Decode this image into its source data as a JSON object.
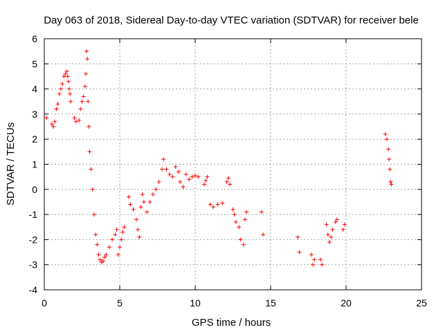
{
  "chart_data": {
    "type": "scatter",
    "title": "Day 063 of 2018, Sidereal Day-to-day VTEC variation (SDTVAR) for receiver bele",
    "xlabel": "GPS time / hours",
    "ylabel": "SDTVAR / TECUs",
    "xlim": [
      0,
      25
    ],
    "ylim": [
      -4,
      6
    ],
    "xticks": [
      0,
      5,
      10,
      15,
      20,
      25
    ],
    "yticks": [
      -4,
      -3,
      -2,
      -1,
      0,
      1,
      2,
      3,
      4,
      5,
      6
    ],
    "grid": true,
    "marker": "+",
    "color": "#ff0000",
    "series": [
      {
        "name": "SDTVAR",
        "points": [
          [
            0.15,
            2.85
          ],
          [
            0.5,
            2.6
          ],
          [
            0.6,
            2.5
          ],
          [
            0.7,
            2.7
          ],
          [
            0.8,
            3.2
          ],
          [
            0.9,
            3.4
          ],
          [
            1.0,
            3.8
          ],
          [
            1.1,
            4.0
          ],
          [
            1.2,
            4.2
          ],
          [
            1.3,
            4.5
          ],
          [
            1.4,
            4.6
          ],
          [
            1.5,
            4.7
          ],
          [
            1.55,
            4.5
          ],
          [
            1.6,
            4.3
          ],
          [
            1.65,
            4.0
          ],
          [
            1.7,
            3.8
          ],
          [
            1.75,
            3.5
          ],
          [
            2.0,
            2.85
          ],
          [
            2.1,
            2.7
          ],
          [
            2.3,
            2.75
          ],
          [
            2.4,
            3.2
          ],
          [
            2.5,
            3.5
          ],
          [
            2.6,
            3.7
          ],
          [
            2.7,
            4.1
          ],
          [
            2.75,
            4.6
          ],
          [
            2.8,
            5.5
          ],
          [
            2.85,
            5.2
          ],
          [
            2.9,
            3.5
          ],
          [
            2.95,
            2.5
          ],
          [
            3.0,
            1.5
          ],
          [
            3.1,
            0.8
          ],
          [
            3.2,
            0.0
          ],
          [
            3.3,
            -1.0
          ],
          [
            3.4,
            -1.8
          ],
          [
            3.5,
            -2.2
          ],
          [
            3.6,
            -2.6
          ],
          [
            3.7,
            -2.8
          ],
          [
            3.8,
            -2.9
          ],
          [
            3.9,
            -2.85
          ],
          [
            4.0,
            -2.7
          ],
          [
            4.1,
            -2.6
          ],
          [
            4.3,
            -2.3
          ],
          [
            4.5,
            -2.0
          ],
          [
            4.7,
            -1.8
          ],
          [
            4.8,
            -1.6
          ],
          [
            4.9,
            -2.6
          ],
          [
            5.0,
            -2.3
          ],
          [
            5.1,
            -2.0
          ],
          [
            5.2,
            -1.7
          ],
          [
            5.3,
            -1.5
          ],
          [
            5.6,
            -0.3
          ],
          [
            5.7,
            -0.6
          ],
          [
            5.9,
            -0.8
          ],
          [
            6.1,
            -1.2
          ],
          [
            6.2,
            -1.6
          ],
          [
            6.3,
            -1.9
          ],
          [
            6.4,
            -0.7
          ],
          [
            6.5,
            -0.2
          ],
          [
            6.6,
            -0.5
          ],
          [
            6.8,
            -0.9
          ],
          [
            7.0,
            -0.5
          ],
          [
            7.2,
            -0.2
          ],
          [
            7.4,
            0.0
          ],
          [
            7.6,
            0.3
          ],
          [
            7.8,
            0.8
          ],
          [
            7.9,
            1.2
          ],
          [
            8.1,
            0.8
          ],
          [
            8.3,
            0.6
          ],
          [
            8.5,
            0.5
          ],
          [
            8.7,
            0.9
          ],
          [
            8.9,
            0.7
          ],
          [
            9.0,
            0.3
          ],
          [
            9.2,
            0.1
          ],
          [
            9.4,
            0.6
          ],
          [
            9.6,
            0.4
          ],
          [
            9.8,
            0.5
          ],
          [
            10.0,
            0.55
          ],
          [
            10.2,
            0.5
          ],
          [
            10.6,
            0.2
          ],
          [
            10.7,
            0.35
          ],
          [
            10.8,
            0.5
          ],
          [
            11.0,
            -0.6
          ],
          [
            11.2,
            -0.7
          ],
          [
            11.5,
            -0.6
          ],
          [
            11.8,
            -0.55
          ],
          [
            12.1,
            0.3
          ],
          [
            12.2,
            0.45
          ],
          [
            12.3,
            0.2
          ],
          [
            12.5,
            -0.8
          ],
          [
            12.6,
            -1.0
          ],
          [
            12.7,
            -1.3
          ],
          [
            12.9,
            -1.5
          ],
          [
            13.0,
            -2.0
          ],
          [
            13.2,
            -2.2
          ],
          [
            13.3,
            -1.2
          ],
          [
            13.4,
            -0.9
          ],
          [
            14.4,
            -0.9
          ],
          [
            14.5,
            -1.8
          ],
          [
            16.8,
            -1.9
          ],
          [
            16.9,
            -2.5
          ],
          [
            17.7,
            -2.6
          ],
          [
            17.8,
            -3.0
          ],
          [
            17.9,
            -2.8
          ],
          [
            18.3,
            -2.8
          ],
          [
            18.4,
            -3.0
          ],
          [
            18.7,
            -1.4
          ],
          [
            18.8,
            -1.8
          ],
          [
            18.9,
            -2.1
          ],
          [
            19.0,
            -1.9
          ],
          [
            19.1,
            -1.6
          ],
          [
            19.3,
            -1.3
          ],
          [
            19.4,
            -1.2
          ],
          [
            19.8,
            -1.6
          ],
          [
            19.9,
            -1.4
          ],
          [
            22.6,
            2.2
          ],
          [
            22.7,
            2.0
          ],
          [
            22.8,
            1.6
          ],
          [
            22.85,
            1.2
          ],
          [
            22.9,
            0.8
          ],
          [
            22.95,
            0.3
          ],
          [
            23.0,
            0.2
          ]
        ]
      }
    ]
  }
}
